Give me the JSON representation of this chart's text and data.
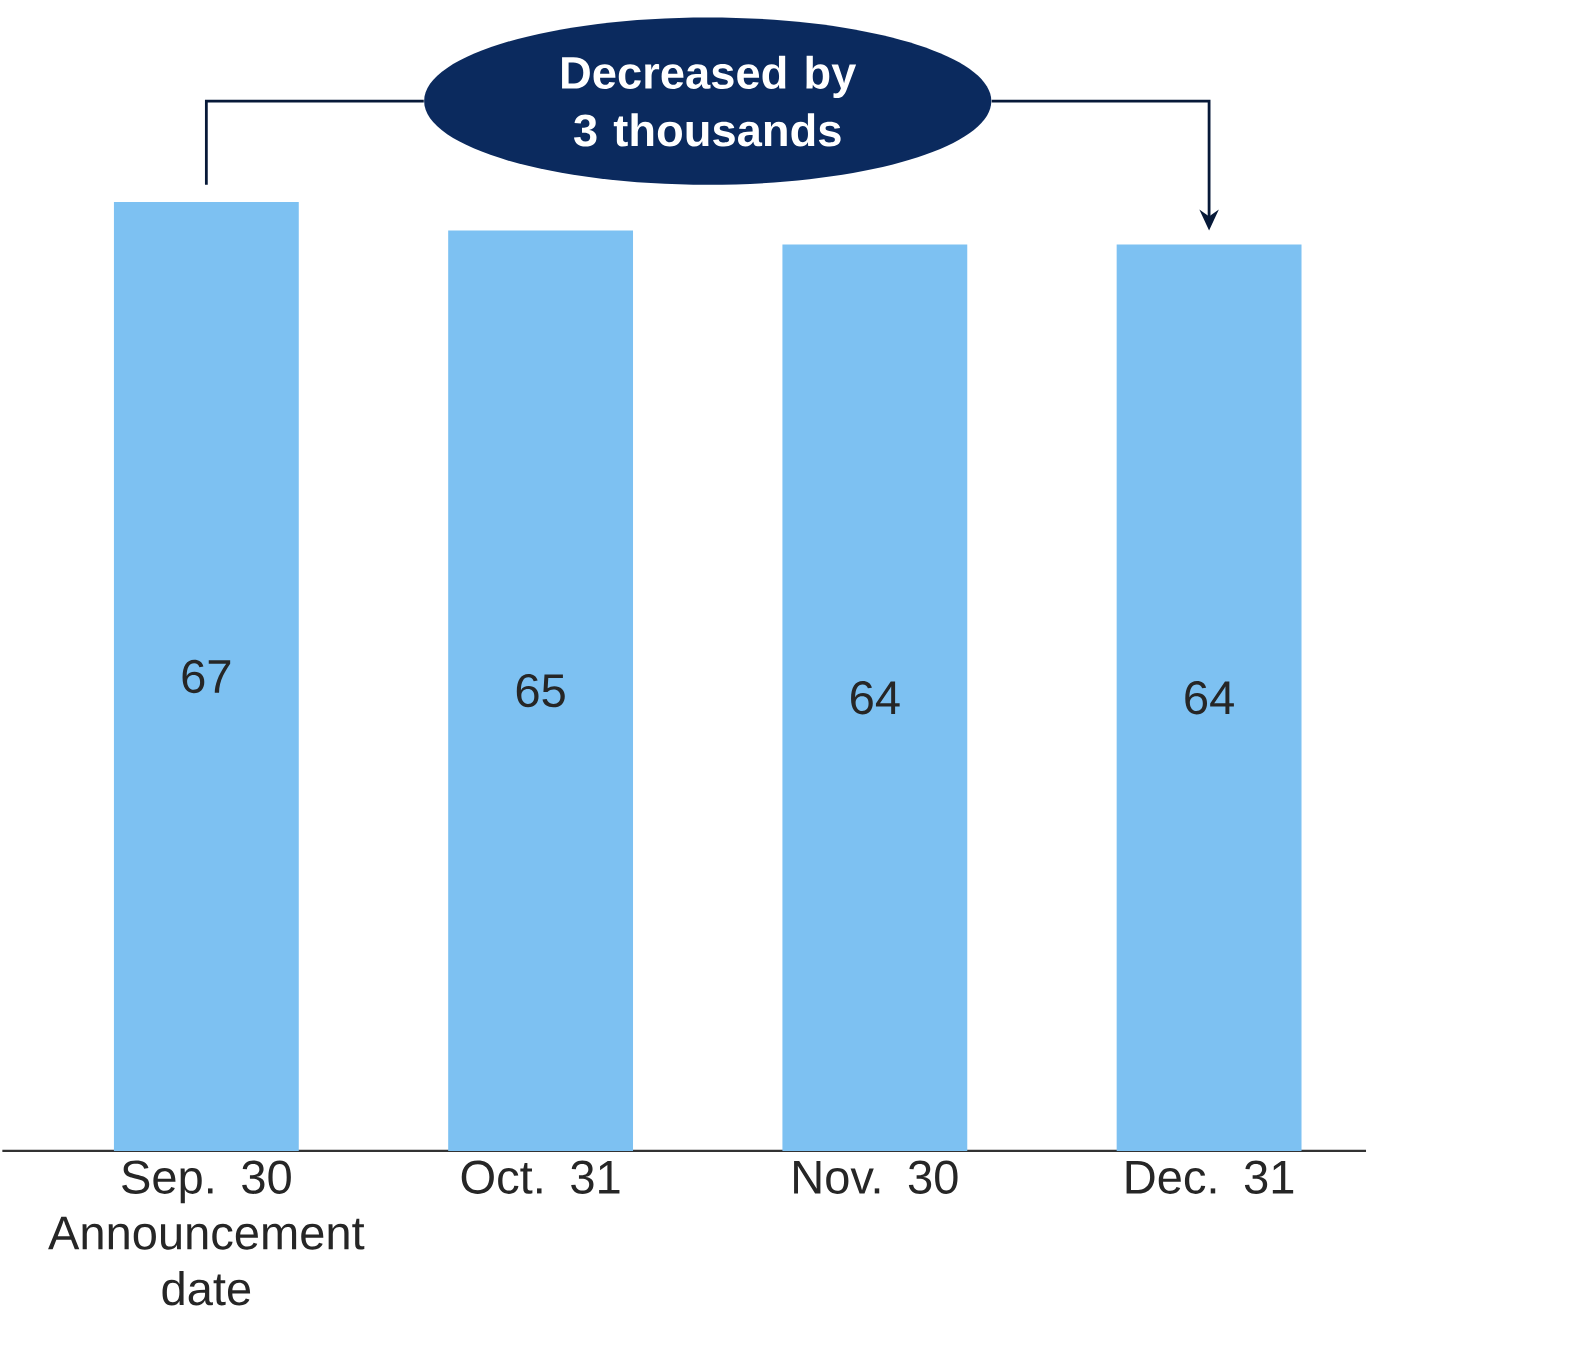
{
  "chart_data": {
    "type": "bar",
    "categories": [
      "Sep. 30 Announcement date",
      "Oct. 31",
      "Nov. 30",
      "Dec. 31"
    ],
    "values": [
      67,
      65,
      64,
      64
    ],
    "color": "#7dc1f2",
    "data_labels": true,
    "annotations": [
      "Decreased by 3 thousands"
    ]
  }
}
